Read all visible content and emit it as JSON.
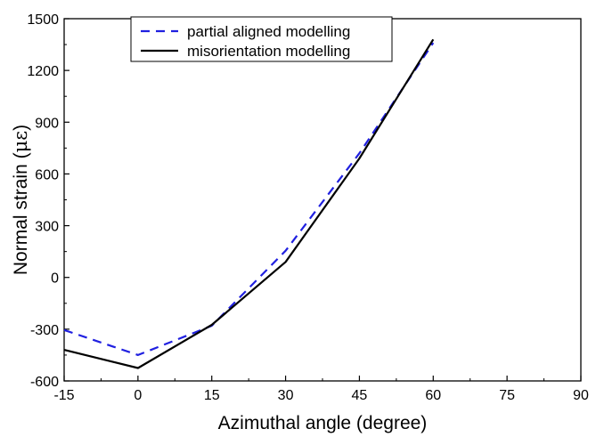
{
  "chart_data": {
    "type": "line",
    "title": "",
    "xlabel": "Azimuthal angle (degree)",
    "ylabel_prefix": "Normal strain (",
    "ylabel_mu": "με",
    "ylabel_suffix": ")",
    "xlim": [
      -15,
      90
    ],
    "ylim": [
      -600,
      1500
    ],
    "xticks": [
      -15,
      0,
      15,
      30,
      45,
      60,
      75,
      90
    ],
    "yticks": [
      -600,
      -300,
      0,
      300,
      600,
      900,
      1200,
      1500
    ],
    "legend_position": "top-left",
    "grid": false,
    "series": [
      {
        "name": "partial aligned modelling",
        "style": "dashed",
        "color": "#2020e0",
        "x": [
          -15,
          0,
          15,
          30,
          45,
          60
        ],
        "y": [
          -305,
          -450,
          -280,
          155,
          720,
          1360
        ]
      },
      {
        "name": "misorientation modelling",
        "style": "solid",
        "color": "#000000",
        "x": [
          -15,
          0,
          15,
          30,
          45,
          60
        ],
        "y": [
          -420,
          -525,
          -275,
          90,
          690,
          1380
        ]
      }
    ]
  }
}
